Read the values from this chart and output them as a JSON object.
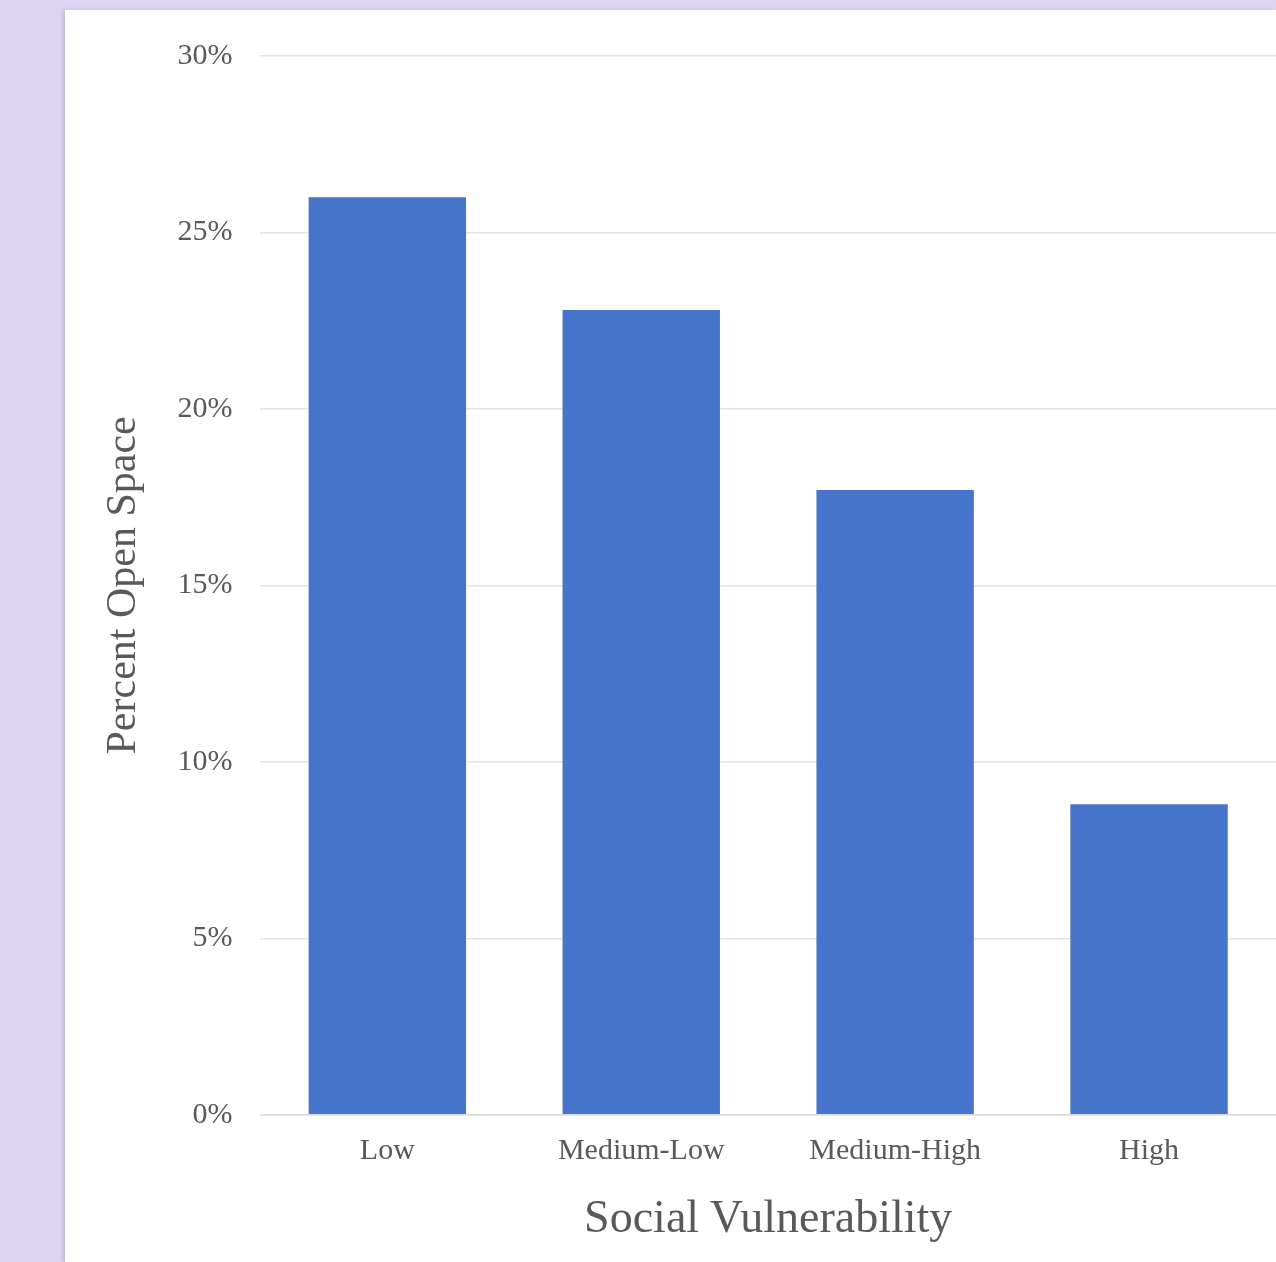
{
  "chart_data": {
    "type": "bar",
    "xlabel": "Social Vulnerability",
    "ylabel": "Percent Open Space",
    "categories": [
      "Low",
      "Medium-Low",
      "Medium-High",
      "High"
    ],
    "values": [
      26.0,
      22.8,
      17.7,
      8.8
    ],
    "color": "#4775cb",
    "ylim": [
      0,
      30
    ],
    "yticks": [
      {
        "value": 0,
        "label": "0%"
      },
      {
        "value": 5,
        "label": "5%"
      },
      {
        "value": 10,
        "label": "10%"
      },
      {
        "value": 15,
        "label": "15%"
      },
      {
        "value": 20,
        "label": "20%"
      },
      {
        "value": 25,
        "label": "25%"
      },
      {
        "value": 30,
        "label": "30%"
      }
    ],
    "grid": "y"
  }
}
